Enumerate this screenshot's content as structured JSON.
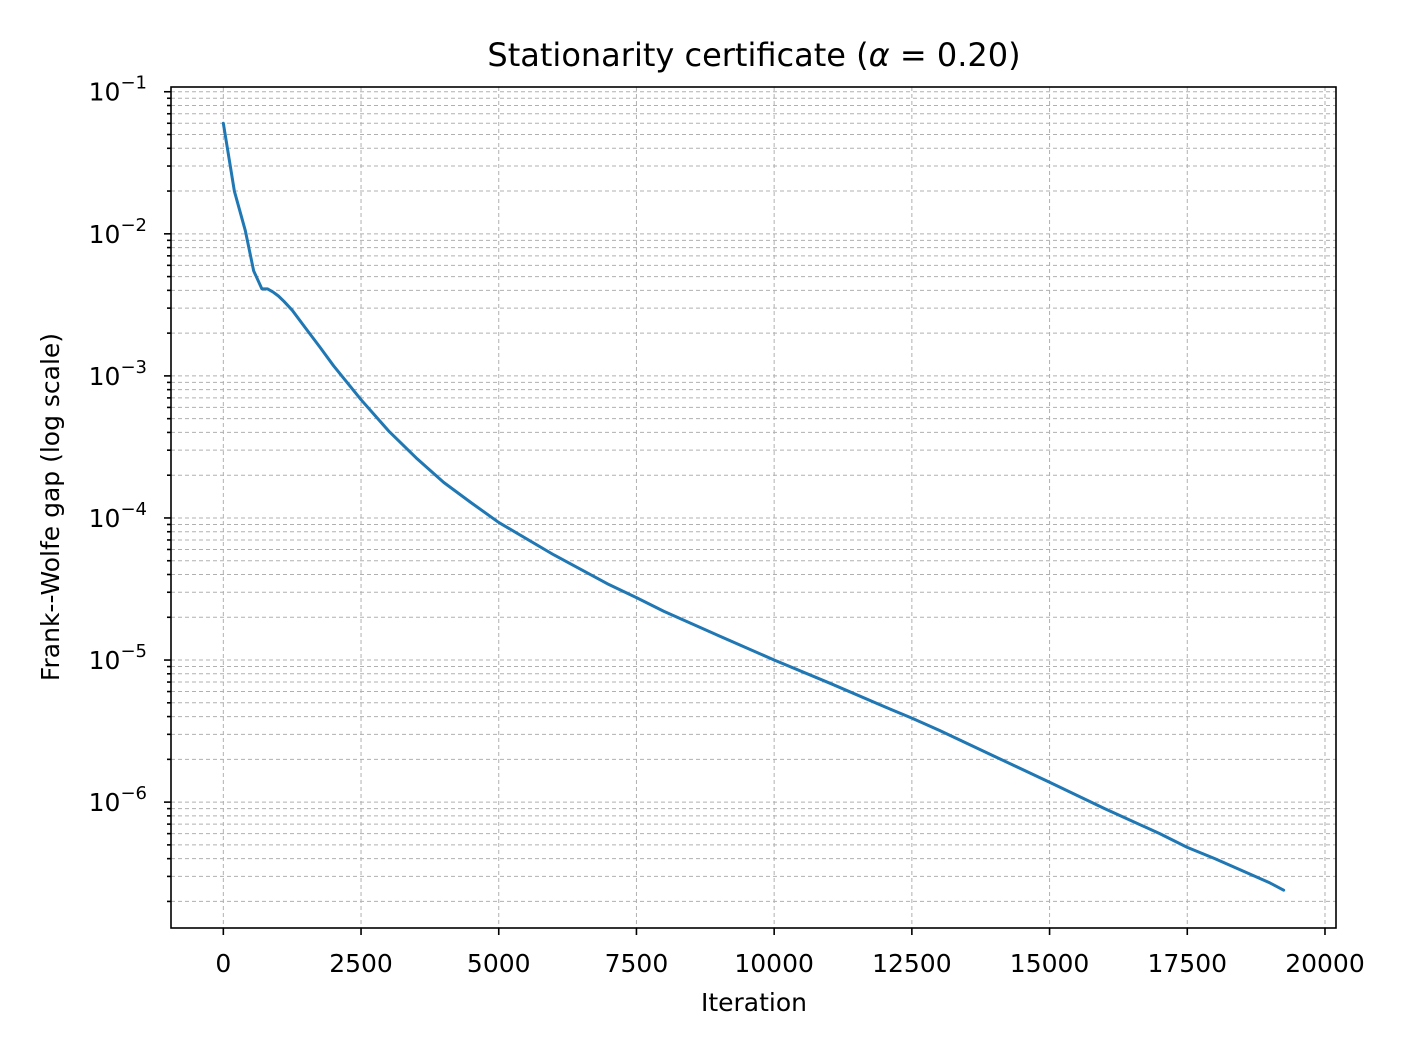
{
  "chart_data": {
    "type": "line",
    "title": {
      "prefix": "Stationarity certificate (",
      "symbol": "α",
      "equals": " = ",
      "value": "0.20",
      "suffix": ")"
    },
    "xlabel": "Iteration",
    "ylabel": "Frank--Wolfe gap (log scale)",
    "y_scale": "log",
    "grid": true,
    "xlim": [
      -950,
      20200
    ],
    "ylim": [
      1.3e-07,
      0.108
    ],
    "x_ticks": [
      0,
      2500,
      5000,
      7500,
      10000,
      12500,
      15000,
      17500,
      20000
    ],
    "x_tick_labels": [
      "0",
      "2500",
      "5000",
      "7500",
      "10000",
      "12500",
      "15000",
      "17500",
      "20000"
    ],
    "y_ticks": [
      {
        "base": "10",
        "exp": "−1",
        "value": 0.1
      },
      {
        "base": "10",
        "exp": "−2",
        "value": 0.01
      },
      {
        "base": "10",
        "exp": "−3",
        "value": 0.001
      },
      {
        "base": "10",
        "exp": "−4",
        "value": 0.0001
      },
      {
        "base": "10",
        "exp": "−5",
        "value": 1e-05
      },
      {
        "base": "10",
        "exp": "−6",
        "value": 1e-06
      }
    ],
    "colors": {
      "series": "#1f77b4"
    },
    "series": [
      {
        "x": [
          0,
          200,
          400,
          550,
          700,
          800,
          900,
          1000,
          1100,
          1250,
          1500,
          1750,
          2000,
          2500,
          3000,
          3500,
          4000,
          4500,
          5000,
          6000,
          7000,
          7500,
          8000,
          9000,
          10000,
          11000,
          12000,
          12500,
          13000,
          14000,
          15000,
          16000,
          17000,
          17500,
          18000,
          19000,
          19250
        ],
        "y": [
          0.06,
          0.02,
          0.0105,
          0.0055,
          0.0041,
          0.0041,
          0.0039,
          0.00365,
          0.00335,
          0.0029,
          0.00215,
          0.0016,
          0.00118,
          0.00068,
          0.00041,
          0.000265,
          0.000178,
          0.000128,
          9.3e-05,
          5.5e-05,
          3.4e-05,
          2.75e-05,
          2.2e-05,
          1.48e-05,
          1e-05,
          6.9e-06,
          4.7e-06,
          3.9e-06,
          3.2e-06,
          2.1e-06,
          1.38e-06,
          9e-07,
          6e-07,
          4.8e-07,
          4e-07,
          2.7e-07,
          2.4e-07
        ]
      }
    ]
  }
}
